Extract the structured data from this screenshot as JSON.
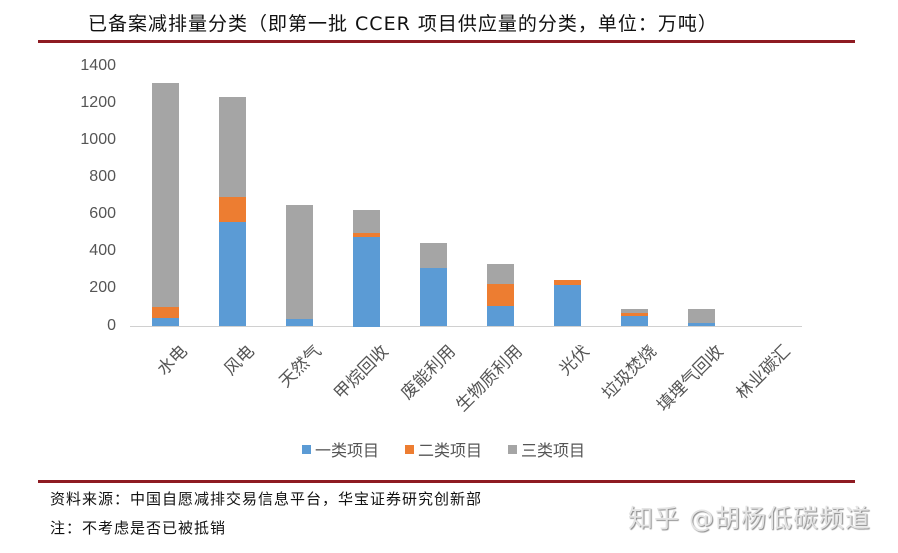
{
  "header": {
    "title": "已备案减排量分类（即第一批 CCER 项目供应量的分类，单位：万吨）"
  },
  "colors": {
    "series_1": "#5b9bd5",
    "series_2": "#ed7d31",
    "series_3": "#a5a5a5",
    "rule": "#8e1b22"
  },
  "chart_data": {
    "type": "bar",
    "stacked": true,
    "title": "已备案减排量分类（即第一批 CCER 项目供应量的分类，单位：万吨）",
    "xlabel": "",
    "ylabel": "",
    "ylim": [
      0,
      1400
    ],
    "yticks": [
      0,
      200,
      400,
      600,
      800,
      1000,
      1200,
      1400
    ],
    "grid": false,
    "legend_position": "bottom",
    "categories": [
      "水电",
      "风电",
      "天然气",
      "甲烷回收",
      "废能利用",
      "生物质利用",
      "光伏",
      "垃圾焚烧",
      "填埋气回收",
      "林业碳汇"
    ],
    "series": [
      {
        "name": "一类项目",
        "color": "#5b9bd5",
        "values": [
          45,
          565,
          40,
          480,
          313,
          113,
          226,
          58,
          20,
          0
        ]
      },
      {
        "name": "二类项目",
        "color": "#ed7d31",
        "values": [
          60,
          135,
          0,
          25,
          0,
          118,
          27,
          17,
          0,
          0
        ]
      },
      {
        "name": "三类项目",
        "color": "#a5a5a5",
        "values": [
          1205,
          535,
          612,
          125,
          135,
          103,
          0,
          17,
          72,
          0
        ]
      }
    ]
  },
  "legend": {
    "items": [
      {
        "label": "一类项目",
        "color": "#5b9bd5"
      },
      {
        "label": "二类项目",
        "color": "#ed7d31"
      },
      {
        "label": "三类项目",
        "color": "#a5a5a5"
      }
    ]
  },
  "footer": {
    "source": "资料来源：中国自愿减排交易信息平台，华宝证券研究创新部",
    "note": "注：不考虑是否已被抵销",
    "watermark": "知乎 @胡杨低碳频道"
  }
}
